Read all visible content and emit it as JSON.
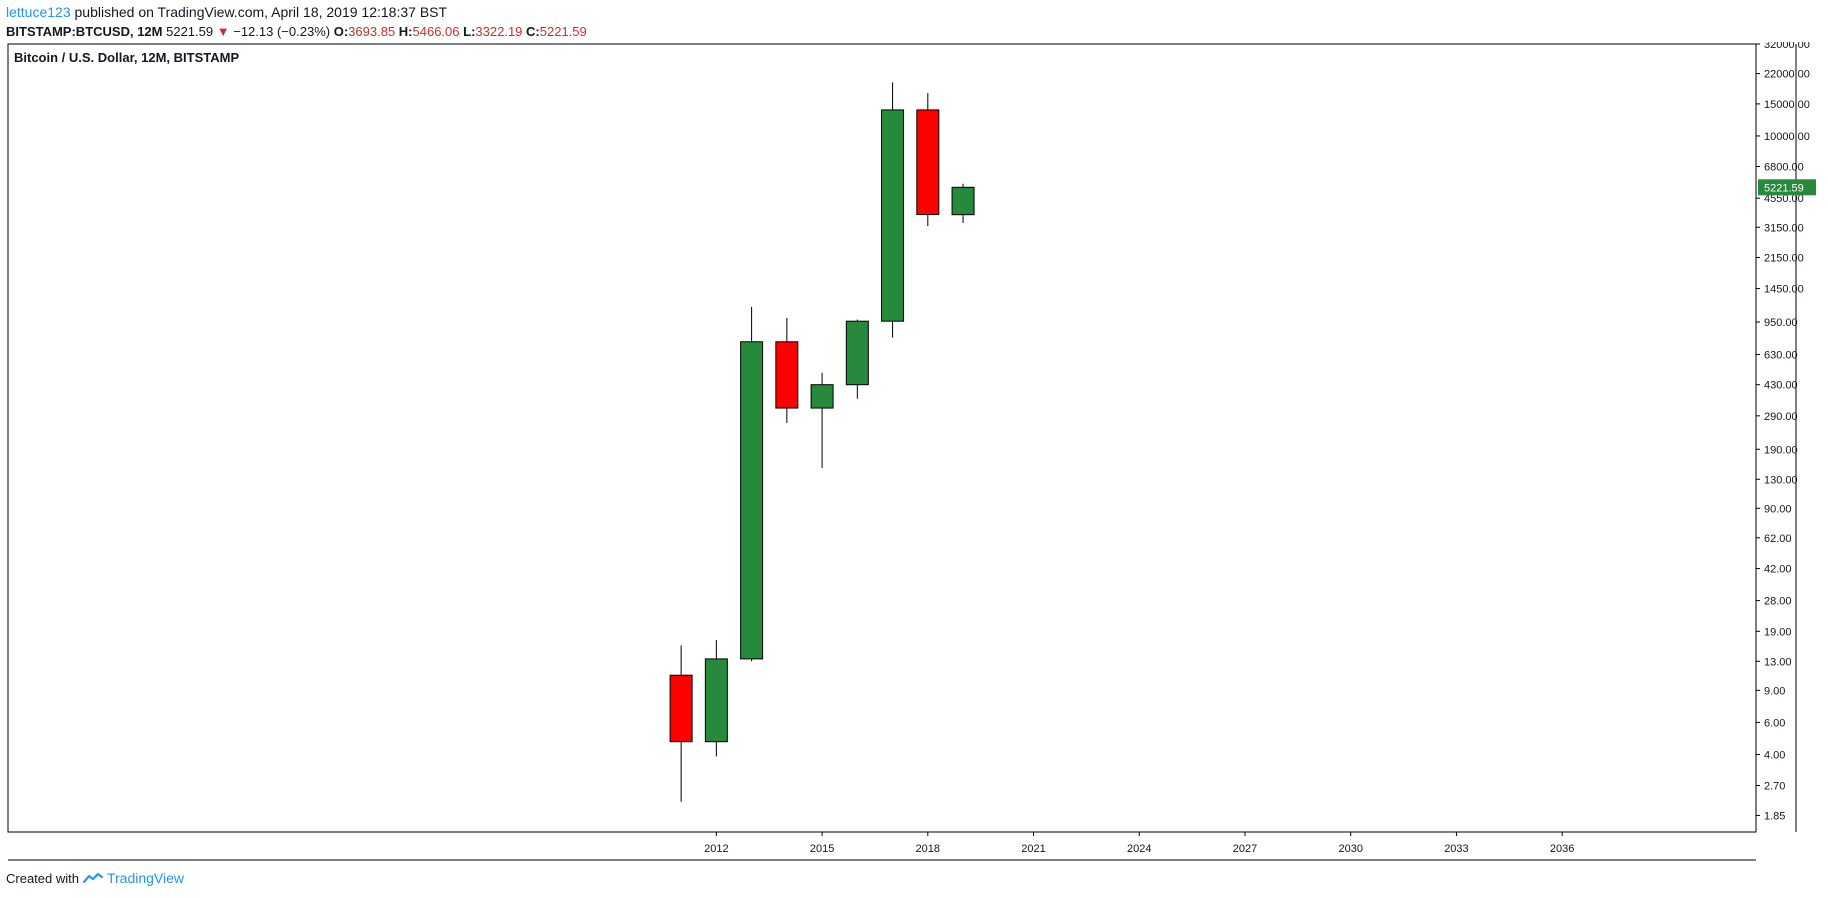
{
  "header": {
    "user": "lettuce123",
    "published": "published on TradingView.com, April 18, 2019 12:18:37 BST",
    "symbol": "BITSTAMP:BTCUSD, 12M",
    "last": "5221.59",
    "change": "−12.13 (−0.23%)",
    "o_label": "O:",
    "o_value": "3693.85",
    "h_label": "H:",
    "h_value": "5466.06",
    "l_label": "L:",
    "l_value": "3322.19",
    "c_label": "C:",
    "c_value": "5221.59"
  },
  "footer": {
    "created": "Created with",
    "brand": "TradingView"
  },
  "chart_data": {
    "type": "candlestick",
    "title": "Bitcoin / U.S. Dollar, 12M, BITSTAMP",
    "y_scale": "log",
    "ylim": [
      1.5,
      32000
    ],
    "y_ticks": [
      "32000.00",
      "22000.00",
      "15000.00",
      "10000.00",
      "6800.00",
      "4550.00",
      "3150.00",
      "2150.00",
      "1450.00",
      "950.00",
      "630.00",
      "430.00",
      "290.00",
      "190.00",
      "130.00",
      "90.00",
      "62.00",
      "42.00",
      "28.00",
      "19.00",
      "13.00",
      "9.00",
      "6.00",
      "4.00",
      "2.70",
      "1.85"
    ],
    "x_ticks": [
      "2012",
      "2015",
      "2018",
      "2021",
      "2024",
      "2027",
      "2030",
      "2033",
      "2036"
    ],
    "x_range": [
      1991.9,
      2041.5
    ],
    "last_price_label": "5221.59",
    "colors": {
      "up": "#26893c",
      "down": "#ff0000",
      "wick": "#000000",
      "grid": "#000000"
    },
    "candles": [
      {
        "year": 2011,
        "open": 10.9,
        "high": 15.9,
        "low": 2.2,
        "close": 4.7
      },
      {
        "year": 2012,
        "open": 4.7,
        "high": 17.0,
        "low": 3.9,
        "close": 13.4
      },
      {
        "year": 2013,
        "open": 13.4,
        "high": 1150,
        "low": 13.0,
        "close": 740
      },
      {
        "year": 2014,
        "open": 740,
        "high": 1000,
        "low": 265,
        "close": 320
      },
      {
        "year": 2015,
        "open": 320,
        "high": 500,
        "low": 150,
        "close": 430
      },
      {
        "year": 2016,
        "open": 430,
        "high": 980,
        "low": 360,
        "close": 960
      },
      {
        "year": 2017,
        "open": 960,
        "high": 19700,
        "low": 780,
        "close": 13900
      },
      {
        "year": 2018,
        "open": 13900,
        "high": 17200,
        "low": 3200,
        "close": 3700
      },
      {
        "year": 2019,
        "open": 3694,
        "high": 5466,
        "low": 3322,
        "close": 5222
      }
    ]
  }
}
